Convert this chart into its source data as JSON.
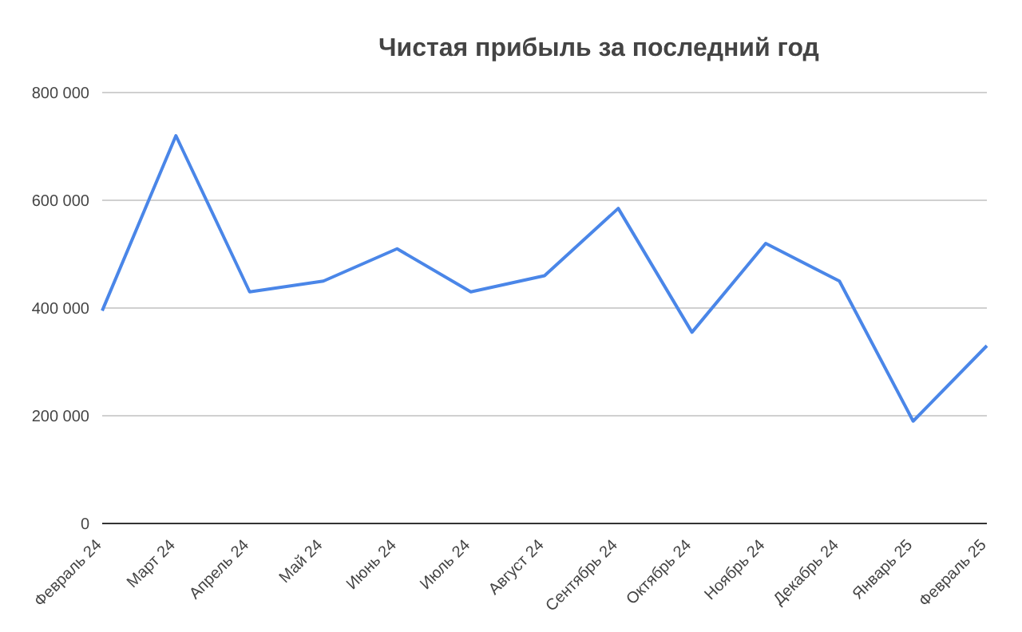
{
  "chart_data": {
    "type": "line",
    "title": "Чистая прибыль за последний год",
    "categories": [
      "Февраль 24",
      "Март 24",
      "Апрель 24",
      "Май 24",
      "Июнь 24",
      "Июль 24",
      "Август 24",
      "Сентябрь 24",
      "Октябрь 24",
      "Ноябрь 24",
      "Декабрь 24",
      "Январь 25",
      "Февраль 25"
    ],
    "series": [
      {
        "color": "#4a86e8",
        "values": [
          395000,
          720000,
          430000,
          450000,
          510000,
          430000,
          460000,
          585000,
          355000,
          520000,
          450000,
          190000,
          330000
        ]
      }
    ],
    "ylim": [
      0,
      800000
    ],
    "yticks": [
      {
        "value": 0,
        "label": "0"
      },
      {
        "value": 200000,
        "label": "200 000"
      },
      {
        "value": 400000,
        "label": "400 000"
      },
      {
        "value": 600000,
        "label": "600 000"
      },
      {
        "value": 800000,
        "label": "800 000"
      }
    ],
    "grid": "y",
    "legend": false,
    "marker": "none",
    "line_style": "solid"
  }
}
